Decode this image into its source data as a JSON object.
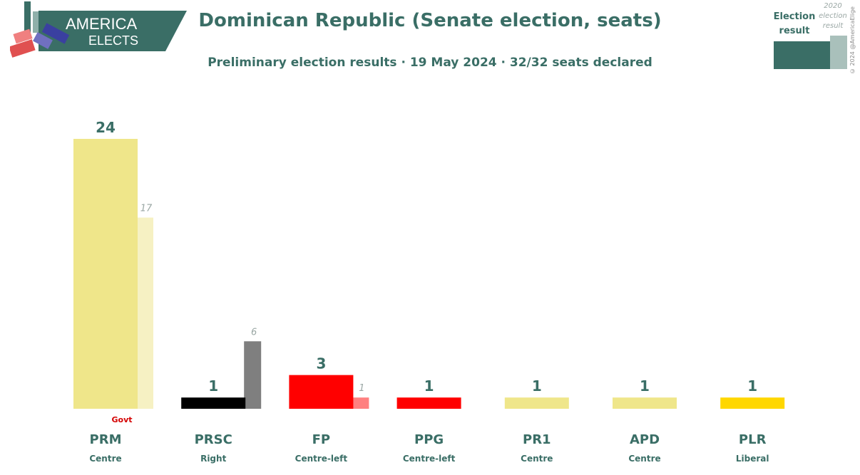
{
  "brand": {
    "line1": "AMERICA",
    "line2": "ELECTS",
    "color": "#3a6e66"
  },
  "header": {
    "title": "Dominican Republic (Senate election, seats)",
    "subtitle": "Preliminary election results · 19 May 2024 · 32/32 seats declared"
  },
  "legend": {
    "current_label_1": "Election",
    "current_label_2": "result",
    "previous_label_1": "2020",
    "previous_label_2": "election",
    "previous_label_3": "result"
  },
  "credit": "© 2024 @AmericaElige",
  "chart_data": {
    "type": "bar",
    "title": "Dominican Republic (Senate election, seats)",
    "categories": [
      "PRM",
      "PRSC",
      "FP",
      "PPG",
      "PR1",
      "APD",
      "PLR"
    ],
    "ideology": [
      "Centre",
      "Right",
      "Centre-left",
      "Centre-left",
      "Centre",
      "Centre",
      "Liberal"
    ],
    "series": [
      {
        "name": "Election result",
        "values": [
          24,
          1,
          3,
          1,
          1,
          1,
          1
        ]
      },
      {
        "name": "2020 election result",
        "values": [
          17,
          6,
          1,
          null,
          null,
          null,
          null
        ]
      }
    ],
    "colors": [
      "#efe68a",
      "#000000",
      "#ff0000",
      "#ff0000",
      "#efe68a",
      "#efe68a",
      "#ffd700"
    ],
    "previous_colors": [
      "#f6f1c3",
      "#7f7f7f",
      "#ff8080",
      null,
      null,
      null,
      null
    ],
    "annotations": [
      {
        "category": "PRM",
        "text": "Govt",
        "color": "#d40000"
      }
    ],
    "ylim": [
      0,
      24
    ]
  }
}
